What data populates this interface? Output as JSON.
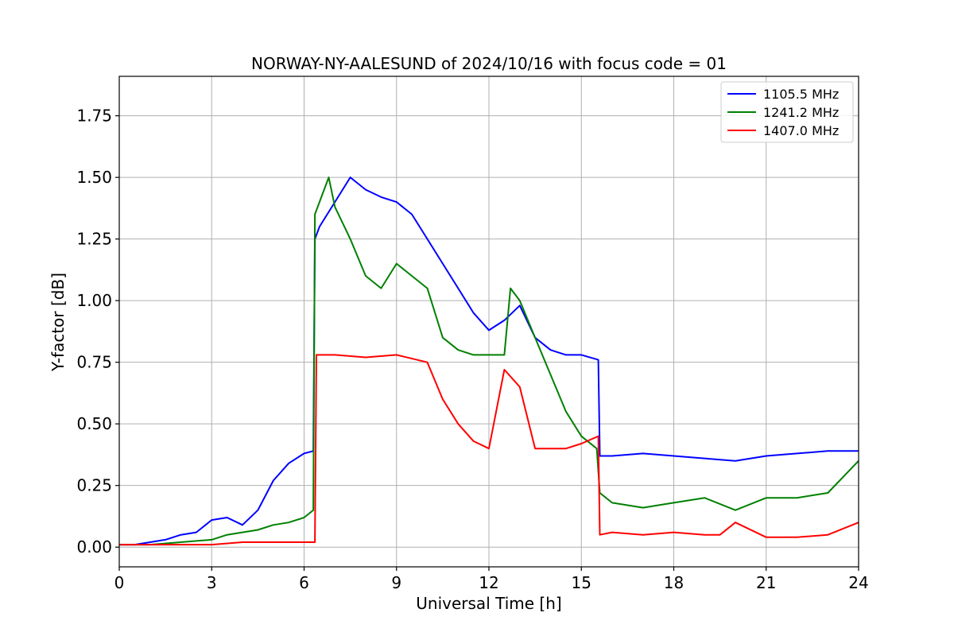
{
  "chart_data": {
    "type": "line",
    "title": "NORWAY-NY-AALESUND of 2024/10/16 with focus code = 01",
    "xlabel": "Universal Time [h]",
    "ylabel": "Y-factor [dB]",
    "xlim": [
      0,
      24
    ],
    "ylim": [
      -0.08,
      1.91
    ],
    "xticks": [
      0,
      3,
      6,
      9,
      12,
      15,
      18,
      21,
      24
    ],
    "xtick_labels": [
      "0",
      "3",
      "6",
      "9",
      "12",
      "15",
      "18",
      "21",
      "24"
    ],
    "yticks": [
      0.0,
      0.25,
      0.5,
      0.75,
      1.0,
      1.25,
      1.5,
      1.75
    ],
    "ytick_labels": [
      "0.00",
      "0.25",
      "0.50",
      "0.75",
      "1.00",
      "1.25",
      "1.50",
      "1.75"
    ],
    "grid": true,
    "legend_position": "top-right",
    "series": [
      {
        "name": "1105.5 MHz",
        "color": "#0000ff",
        "x": [
          0,
          0.5,
          1.0,
          1.5,
          2.0,
          2.5,
          3.0,
          3.5,
          4.0,
          4.5,
          5.0,
          5.5,
          6.0,
          6.3,
          6.35,
          6.5,
          7.0,
          7.5,
          8.0,
          8.5,
          9.0,
          9.5,
          10.0,
          10.5,
          11.0,
          11.5,
          12.0,
          12.5,
          13.0,
          13.5,
          14.0,
          14.5,
          15.0,
          15.55,
          15.6,
          16.0,
          17.0,
          18.0,
          19.0,
          20.0,
          21.0,
          22.0,
          23.0,
          24.0
        ],
        "y": [
          0.01,
          0.01,
          0.02,
          0.03,
          0.05,
          0.06,
          0.11,
          0.12,
          0.09,
          0.15,
          0.27,
          0.34,
          0.38,
          0.39,
          1.25,
          1.3,
          1.4,
          1.5,
          1.45,
          1.42,
          1.4,
          1.35,
          1.25,
          1.15,
          1.05,
          0.95,
          0.88,
          0.92,
          0.98,
          0.85,
          0.8,
          0.78,
          0.78,
          0.76,
          0.37,
          0.37,
          0.38,
          0.37,
          0.36,
          0.35,
          0.37,
          0.38,
          0.39,
          0.39
        ]
      },
      {
        "name": "1241.2 MHz",
        "color": "#008000",
        "x": [
          0,
          0.5,
          1.0,
          2.0,
          3.0,
          3.5,
          4.0,
          4.5,
          5.0,
          5.5,
          6.0,
          6.3,
          6.35,
          6.5,
          6.8,
          7.0,
          7.5,
          8.0,
          8.5,
          9.0,
          9.5,
          10.0,
          10.5,
          11.0,
          11.5,
          12.0,
          12.5,
          12.7,
          13.0,
          13.5,
          14.0,
          14.5,
          15.0,
          15.5,
          15.6,
          16.0,
          17.0,
          18.0,
          19.0,
          20.0,
          21.0,
          22.0,
          23.0,
          24.0
        ],
        "y": [
          0.01,
          0.01,
          0.01,
          0.02,
          0.03,
          0.05,
          0.06,
          0.07,
          0.09,
          0.1,
          0.12,
          0.15,
          1.35,
          1.4,
          1.5,
          1.38,
          1.25,
          1.1,
          1.05,
          1.15,
          1.1,
          1.05,
          0.85,
          0.8,
          0.78,
          0.78,
          0.78,
          1.05,
          1.0,
          0.85,
          0.7,
          0.55,
          0.45,
          0.4,
          0.22,
          0.18,
          0.16,
          0.18,
          0.2,
          0.15,
          0.2,
          0.2,
          0.22,
          0.35
        ]
      },
      {
        "name": "1407.0 MHz",
        "color": "#ff0000",
        "x": [
          0,
          1.0,
          2.0,
          3.0,
          4.0,
          5.0,
          6.0,
          6.35,
          6.4,
          7.0,
          8.0,
          9.0,
          10.0,
          10.5,
          11.0,
          11.5,
          12.0,
          12.5,
          13.0,
          13.5,
          14.0,
          14.5,
          15.0,
          15.55,
          15.6,
          16.0,
          17.0,
          18.0,
          19.0,
          19.5,
          20.0,
          21.0,
          22.0,
          23.0,
          24.0
        ],
        "y": [
          0.01,
          0.01,
          0.01,
          0.01,
          0.02,
          0.02,
          0.02,
          0.02,
          0.78,
          0.78,
          0.77,
          0.78,
          0.75,
          0.6,
          0.5,
          0.43,
          0.4,
          0.72,
          0.65,
          0.4,
          0.4,
          0.4,
          0.42,
          0.45,
          0.05,
          0.06,
          0.05,
          0.06,
          0.05,
          0.05,
          0.1,
          0.04,
          0.04,
          0.05,
          0.1
        ]
      }
    ]
  }
}
